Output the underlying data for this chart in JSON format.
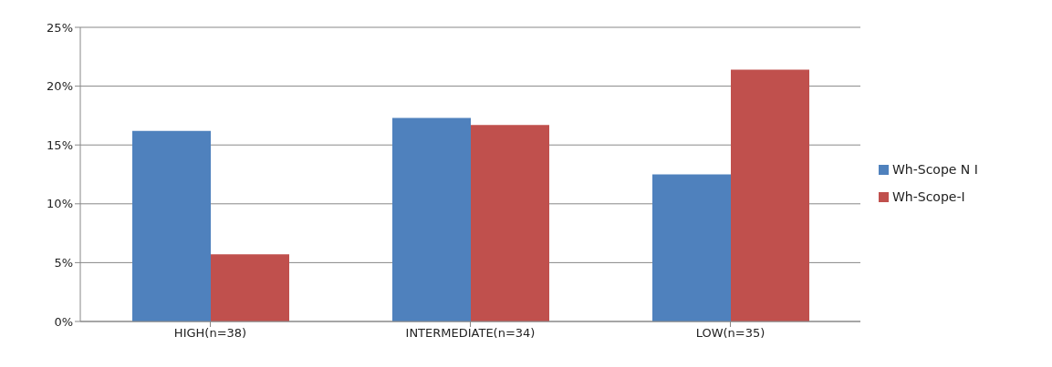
{
  "chart_data": {
    "type": "bar",
    "categories": [
      "HIGH(n=38)",
      "INTERMEDIATE(n=34)",
      "LOW(n=35)"
    ],
    "series": [
      {
        "name": "Wh-Scope N I",
        "color": "#4f81bd",
        "values": [
          16.2,
          17.3,
          12.5
        ]
      },
      {
        "name": "Wh-Scope-I",
        "color": "#c0504d",
        "values": [
          5.7,
          16.7,
          21.4
        ]
      }
    ],
    "ylim": [
      0,
      25
    ],
    "yticks": [
      {
        "value": 0,
        "label": "0%"
      },
      {
        "value": 5,
        "label": "5%"
      },
      {
        "value": 10,
        "label": "10%"
      },
      {
        "value": 15,
        "label": "15%"
      },
      {
        "value": 20,
        "label": "20%"
      },
      {
        "value": 25,
        "label": "25%"
      }
    ],
    "grid": "y",
    "legend": "right"
  }
}
